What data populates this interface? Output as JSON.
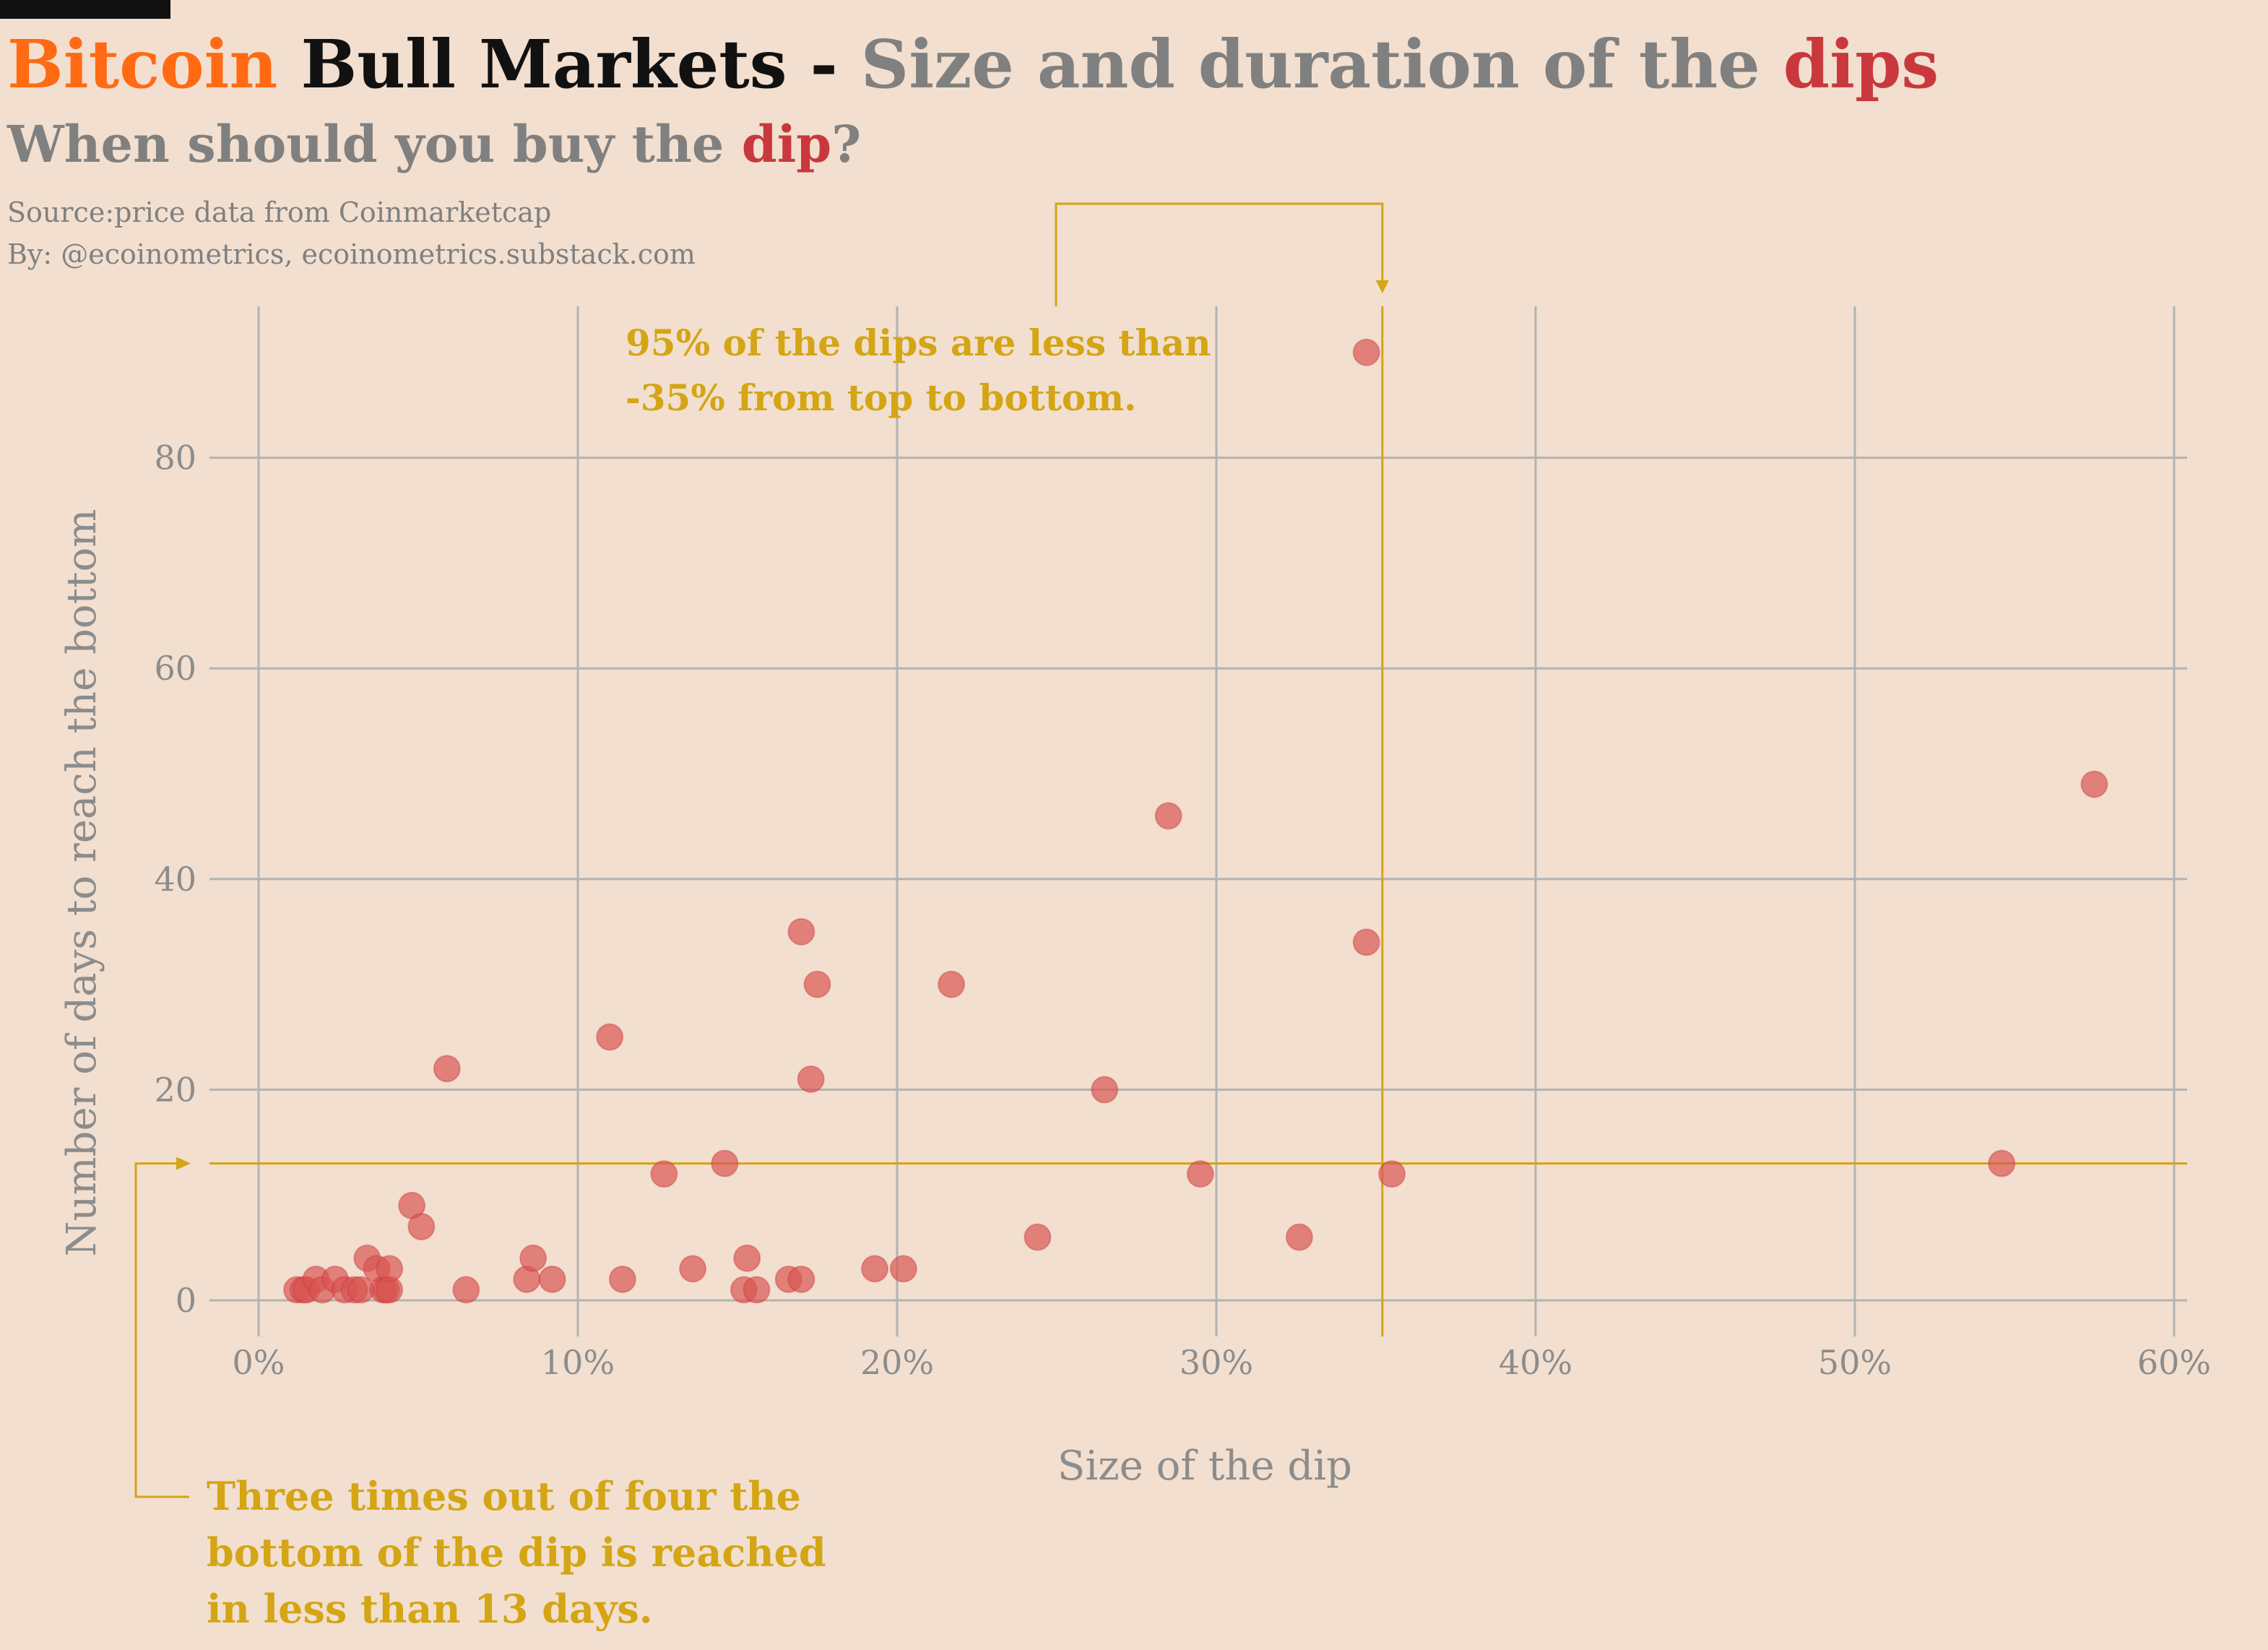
{
  "title": {
    "word1": "Bitcoin",
    "word2": "Bull Markets",
    "dash": "-",
    "part3": "Size and duration of the",
    "word4": "dips"
  },
  "subtitle": {
    "pre": "When should you buy the",
    "highlight": "dip",
    "post": "?"
  },
  "source": "Source:price data from Coinmarketcap",
  "byline": "By: @ecoinometrics, ecoinometrics.substack.com",
  "colors": {
    "background": "#f2dfcf",
    "bitcoin_orange": "#ff6a13",
    "title_black": "#111111",
    "title_gray": "#808080",
    "dips_red": "#c9383c",
    "point_fill": "#d9534f",
    "annotation_gold": "#d4a514",
    "grid": "#b3b3b3"
  },
  "chart_data": {
    "type": "scatter",
    "title": "",
    "xlabel": "Size of the dip",
    "ylabel": "Number of days to reach the bottom",
    "xlim": [
      -0.01,
      0.6
    ],
    "ylim": [
      -3,
      94
    ],
    "x_ticks": [
      0,
      0.1,
      0.2,
      0.3,
      0.4,
      0.5,
      0.6
    ],
    "x_tick_labels": [
      "0%",
      "10%",
      "20%",
      "30%",
      "40%",
      "50%",
      "60%"
    ],
    "y_ticks": [
      0,
      20,
      40,
      60,
      80
    ],
    "y_tick_labels": [
      "0",
      "20",
      "40",
      "60",
      "80"
    ],
    "grid": true,
    "points": [
      [
        0.012,
        1
      ],
      [
        0.014,
        1
      ],
      [
        0.015,
        1
      ],
      [
        0.018,
        2
      ],
      [
        0.02,
        1
      ],
      [
        0.024,
        2
      ],
      [
        0.027,
        1
      ],
      [
        0.03,
        1
      ],
      [
        0.032,
        1
      ],
      [
        0.034,
        4
      ],
      [
        0.037,
        3
      ],
      [
        0.039,
        1
      ],
      [
        0.04,
        1
      ],
      [
        0.041,
        1
      ],
      [
        0.041,
        3
      ],
      [
        0.048,
        9
      ],
      [
        0.051,
        7
      ],
      [
        0.059,
        22
      ],
      [
        0.065,
        1
      ],
      [
        0.084,
        2
      ],
      [
        0.086,
        4
      ],
      [
        0.092,
        2
      ],
      [
        0.11,
        25
      ],
      [
        0.114,
        2
      ],
      [
        0.127,
        12
      ],
      [
        0.136,
        3
      ],
      [
        0.146,
        13
      ],
      [
        0.152,
        1
      ],
      [
        0.153,
        4
      ],
      [
        0.156,
        1
      ],
      [
        0.166,
        2
      ],
      [
        0.17,
        2
      ],
      [
        0.17,
        35
      ],
      [
        0.173,
        21
      ],
      [
        0.175,
        30
      ],
      [
        0.193,
        3
      ],
      [
        0.202,
        3
      ],
      [
        0.217,
        30
      ],
      [
        0.244,
        6
      ],
      [
        0.265,
        20
      ],
      [
        0.285,
        46
      ],
      [
        0.295,
        12
      ],
      [
        0.326,
        6
      ],
      [
        0.347,
        34
      ],
      [
        0.347,
        90
      ],
      [
        0.355,
        12
      ],
      [
        0.546,
        13
      ],
      [
        0.575,
        49
      ]
    ],
    "reference_lines": {
      "vertical_x": 0.352,
      "horizontal_y": 13
    },
    "annotations": {
      "top_line1": "95% of the dips are less than",
      "top_line2": "-35% from top to bottom.",
      "bottom_line1": "Three times out of four the",
      "bottom_line2": "bottom of the dip is reached",
      "bottom_line3": "in less than 13 days."
    }
  }
}
